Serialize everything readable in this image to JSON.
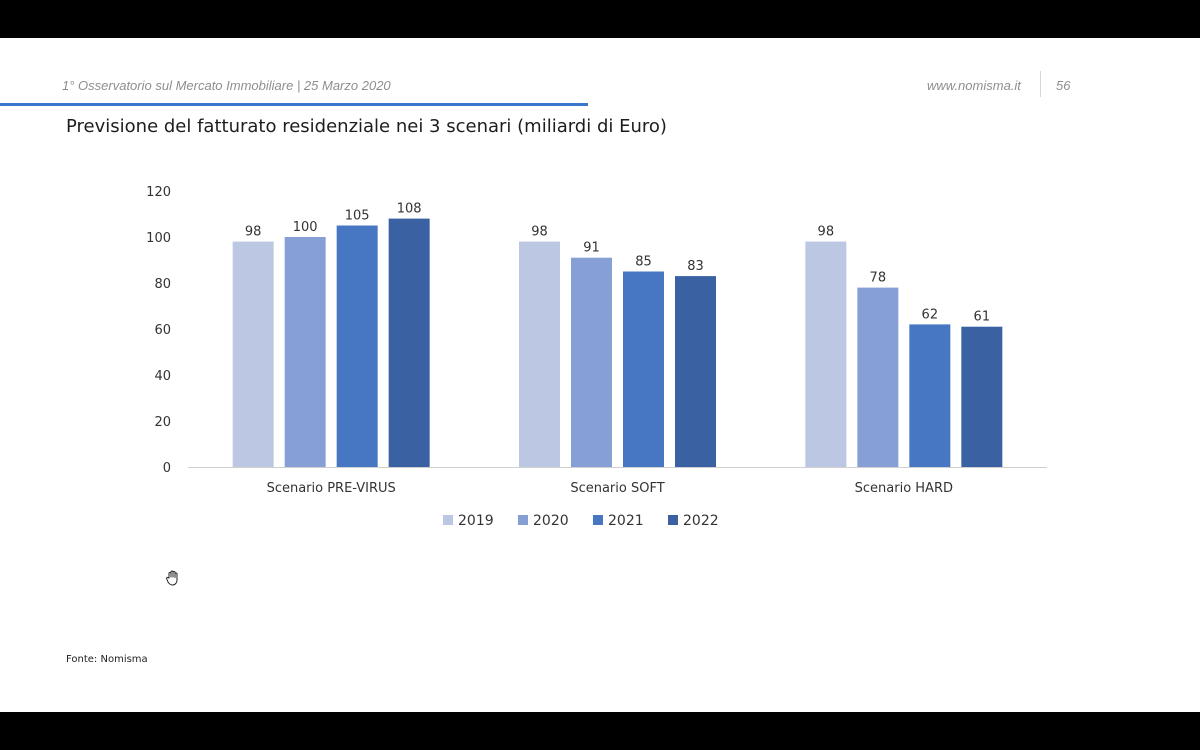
{
  "header": {
    "left_text": "1° Osservatorio sul Mercato Immobiliare | 25 Marzo 2020",
    "site": "www.nomisma.it",
    "page_number": "56"
  },
  "footer": {
    "source": "Fonte: Nomisma"
  },
  "cursor": {
    "icon": "hand-cursor-icon"
  },
  "chart_data": {
    "type": "bar",
    "title": "Previsione del fatturato residenziale nei 3 scenari (miliardi di Euro)",
    "categories": [
      "Scenario PRE-VIRUS",
      "Scenario SOFT",
      "Scenario HARD"
    ],
    "series": [
      {
        "name": "2019",
        "color": "#bcc7e3",
        "values": [
          98,
          98,
          98
        ]
      },
      {
        "name": "2020",
        "color": "#86a0d6",
        "values": [
          100,
          91,
          78
        ]
      },
      {
        "name": "2021",
        "color": "#4777c3",
        "values": [
          105,
          85,
          62
        ]
      },
      {
        "name": "2022",
        "color": "#3a62a3",
        "values": [
          108,
          83,
          61
        ]
      }
    ],
    "xlabel": "",
    "ylabel": "",
    "ylim": [
      0,
      120
    ],
    "yticks": [
      0,
      20,
      40,
      60,
      80,
      100,
      120
    ],
    "grid": false,
    "legend": "bottom"
  }
}
